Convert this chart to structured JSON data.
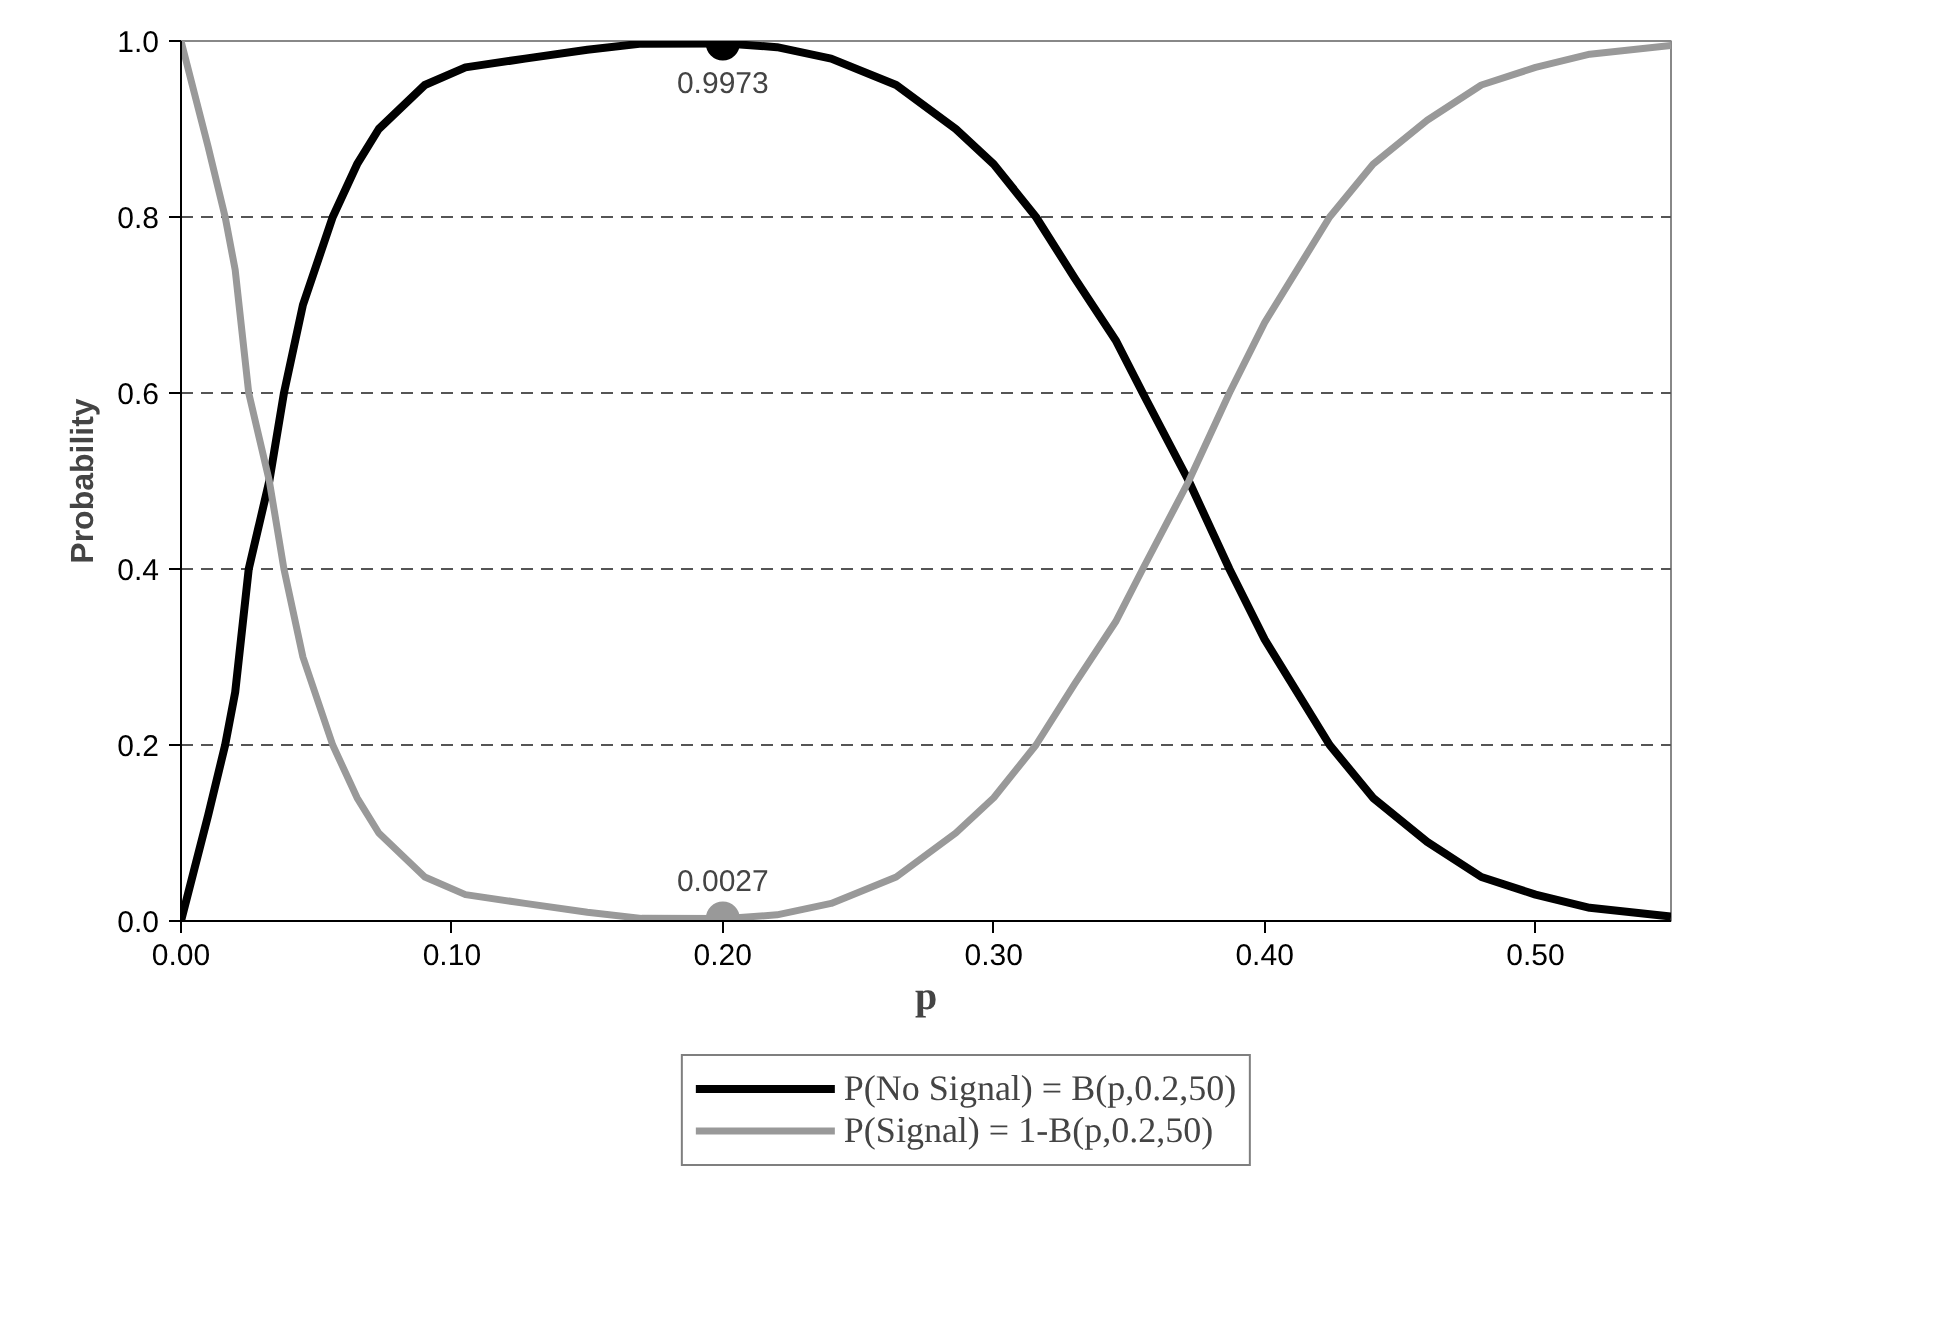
{
  "chart_data": {
    "type": "line",
    "xlabel": "p",
    "ylabel": "Probability",
    "x": [
      0,
      0.005,
      0.01,
      0.0163,
      0.02,
      0.025,
      0.0326,
      0.038,
      0.045,
      0.056,
      0.065,
      0.073,
      0.09,
      0.105,
      0.127,
      0.15,
      0.17,
      0.2,
      0.22,
      0.24,
      0.264,
      0.286,
      0.3,
      0.3156,
      0.33,
      0.345,
      0.355,
      0.372,
      0.387,
      0.4,
      0.424,
      0.44,
      0.46,
      0.48,
      0.5,
      0.52,
      0.55
    ],
    "series": [
      {
        "name": "P(No Signal) = B(p,0.2,50)",
        "color": "#000000",
        "values": [
          0,
          0.06,
          0.12,
          0.2,
          0.26,
          0.4,
          0.5,
          0.6,
          0.7,
          0.8,
          0.86,
          0.9,
          0.95,
          0.97,
          0.98,
          0.99,
          0.997,
          0.9973,
          0.993,
          0.98,
          0.95,
          0.9,
          0.86,
          0.8,
          0.73,
          0.66,
          0.6,
          0.5,
          0.4,
          0.32,
          0.2,
          0.14,
          0.09,
          0.05,
          0.03,
          0.015,
          0.005
        ]
      },
      {
        "name": "P(Signal) = 1-B(p,0.2,50)",
        "color": "#999999",
        "values": [
          1,
          0.94,
          0.88,
          0.8,
          0.74,
          0.6,
          0.5,
          0.4,
          0.3,
          0.2,
          0.14,
          0.1,
          0.05,
          0.03,
          0.02,
          0.01,
          0.003,
          0.0027,
          0.007,
          0.02,
          0.05,
          0.1,
          0.14,
          0.2,
          0.27,
          0.34,
          0.4,
          0.5,
          0.6,
          0.68,
          0.8,
          0.86,
          0.91,
          0.95,
          0.97,
          0.985,
          0.995
        ]
      },
      {
        "type": "scatter",
        "color": "#000000",
        "x": [
          0.2
        ],
        "values": [
          0.9973
        ],
        "marker": "circle"
      },
      {
        "type": "scatter",
        "color": "#999999",
        "x": [
          0.2
        ],
        "values": [
          0.0027
        ],
        "marker": "circle"
      }
    ],
    "annotations": [
      {
        "text": "0.9973",
        "x": 0.2,
        "y": 0.9973
      },
      {
        "text": "0.0027",
        "x": 0.2,
        "y": 0.0027
      }
    ],
    "xlim": [
      0,
      0.55
    ],
    "xticks": [
      {
        "value": 0,
        "label": "0.00"
      },
      {
        "value": 0.1,
        "label": "0.10"
      },
      {
        "value": 0.2,
        "label": "0.20"
      },
      {
        "value": 0.3,
        "label": "0.30"
      },
      {
        "value": 0.4,
        "label": "0.40"
      },
      {
        "value": 0.5,
        "label": "0.50"
      }
    ],
    "ylim": [
      0,
      1
    ],
    "yticks": [
      {
        "value": 0,
        "label": "0.0"
      },
      {
        "value": 0.2,
        "label": "0.2"
      },
      {
        "value": 0.4,
        "label": "0.4"
      },
      {
        "value": 0.6,
        "label": "0.6"
      },
      {
        "value": 0.8,
        "label": "0.8"
      },
      {
        "value": 1,
        "label": "1.0"
      }
    ],
    "grid": "y",
    "legend": "bottom",
    "marker": "none",
    "line_style": "solid"
  }
}
